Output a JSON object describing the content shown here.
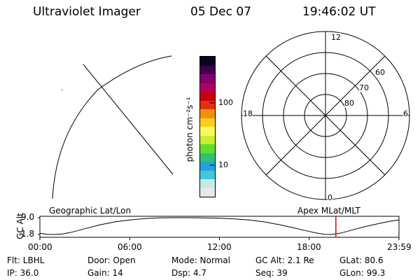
{
  "header": {
    "instrument": "Ultraviolet Imager",
    "date": "05 Dec 07",
    "time": "19:46:02 UT"
  },
  "map": {
    "label": "Geographic Lat/Lon"
  },
  "colorbar": {
    "label": "photon cm⁻²s⁻¹",
    "ticks": [
      "100",
      "10"
    ],
    "colors": [
      "#e8e8e8",
      "#c8e8ee",
      "#40c8d8",
      "#28a0e0",
      "#30c070",
      "#60dd30",
      "#c8ee30",
      "#f8f860",
      "#f8d020",
      "#f09010",
      "#e03010",
      "#c80010",
      "#b00060",
      "#800070",
      "#400050",
      "#100020"
    ]
  },
  "polar": {
    "label": "Apex MLat/MLT",
    "mlt_labels": {
      "top": "12",
      "left": "18",
      "right": "6",
      "bottom": "0"
    },
    "lat_labels": [
      "60",
      "70",
      "80"
    ]
  },
  "chart_data": {
    "type": "line",
    "title": "",
    "ylabel": "GC Alt",
    "ytick_labels": [
      "9.0",
      "1.8"
    ],
    "ylim": [
      1.8,
      9.0
    ],
    "xlim": [
      0,
      1439
    ],
    "xtick_labels": [
      "00:00",
      "06:00",
      "12:00",
      "18:00",
      "23:59"
    ],
    "series": [
      {
        "x": [
          0,
          30,
          60,
          90,
          120,
          150,
          180,
          240,
          300,
          360,
          420,
          480,
          540,
          600,
          660,
          720,
          780,
          840,
          900,
          960,
          1020,
          1080,
          1110,
          1140,
          1170,
          1186,
          1200,
          1230,
          1260,
          1300,
          1350,
          1400,
          1439
        ],
        "values": [
          2.3,
          1.9,
          1.8,
          2.0,
          2.6,
          3.4,
          4.3,
          5.9,
          7.2,
          8.0,
          8.6,
          8.9,
          9.0,
          9.0,
          8.95,
          8.8,
          8.5,
          8.0,
          7.2,
          6.0,
          4.6,
          3.1,
          2.4,
          1.9,
          1.8,
          2.1,
          2.3,
          3.1,
          4.0,
          5.1,
          6.3,
          7.4,
          8.0
        ]
      }
    ],
    "marker": {
      "time": "19:46",
      "x": 1186,
      "color": "#e00000"
    }
  },
  "info": {
    "row1": [
      "Flt: LBHL",
      "Door: Open",
      "Mode: Normal",
      "GC Alt: 2.1 Re",
      "GLat:  80.6"
    ],
    "row2": [
      "IP: 36.0",
      "Gain: 14",
      "Dsp:     4.7",
      "Seq: 39",
      "GLon:  99.3"
    ]
  }
}
